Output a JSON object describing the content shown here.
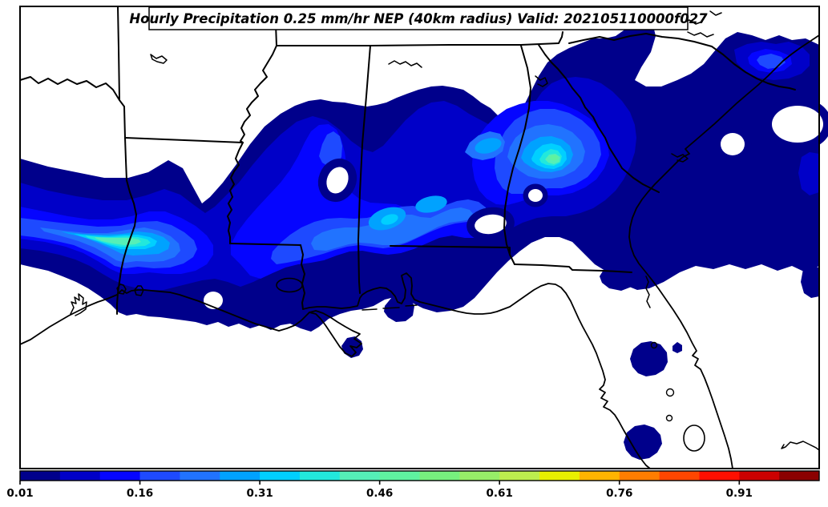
{
  "title": "Hourly Precipitation 0.25 mm/hr NEP (40km radius) Valid: 202105110000f027",
  "chart_data": {
    "type": "heatmap",
    "title": "Hourly Precipitation 0.25 mm/hr NEP (40km radius) Valid: 202105110000f027",
    "variable": "Hourly Precipitation",
    "threshold": "0.25 mm/hr",
    "metric": "NEP (Neighborhood Ensemble Probability)",
    "neighborhood_radius": "40km",
    "valid": "202105110000f027",
    "region": "Southeastern United States: east Texas to the Carolinas, Gulf Coast and Florida",
    "legend_position": "bottom",
    "grid": false,
    "colorbar": {
      "orientation": "horizontal",
      "min": 0.01,
      "max": 1.01,
      "segment_step": 0.05,
      "ticks": [
        0.01,
        0.16,
        0.31,
        0.46,
        0.61,
        0.76,
        0.91
      ],
      "colors": [
        "#00008B",
        "#0000C8",
        "#0505FF",
        "#1E4AFF",
        "#2173FF",
        "#00A2FF",
        "#00CFFF",
        "#22E8DC",
        "#55EFB7",
        "#5FF2A0",
        "#77F07E",
        "#97EE68",
        "#BCEE4E",
        "#E8F000",
        "#FFB400",
        "#FF7D00",
        "#FF4600",
        "#FF0F00",
        "#CC0000",
        "#8B0000"
      ]
    },
    "contour_fill_levels": [
      0.01,
      0.06,
      0.11,
      0.16,
      0.21,
      0.26,
      0.31,
      0.36,
      0.41,
      0.46
    ],
    "maxima": [
      {
        "location": "Texas-Louisiana border (Sabine River area)",
        "approx_peak_nep": 0.45
      },
      {
        "location": "north-central Georgia",
        "approx_peak_nep": 0.5
      },
      {
        "location": "central Mississippi-Alabama band",
        "approx_peak_nep": 0.3
      },
      {
        "location": "coastal South Carolina / North Carolina",
        "approx_peak_nep": 0.2
      }
    ],
    "features": [
      "broad west-to-east precipitation probability band from east Texas across Louisiana, Mississippi, Alabama and Georgia to the Atlantic coast",
      "isolated low-probability (0.01-0.05) cells over the Gulf of Mexico and the Florida peninsula"
    ]
  },
  "frame": {
    "map_background": "#FFFFFF",
    "line_color": "#000000"
  }
}
